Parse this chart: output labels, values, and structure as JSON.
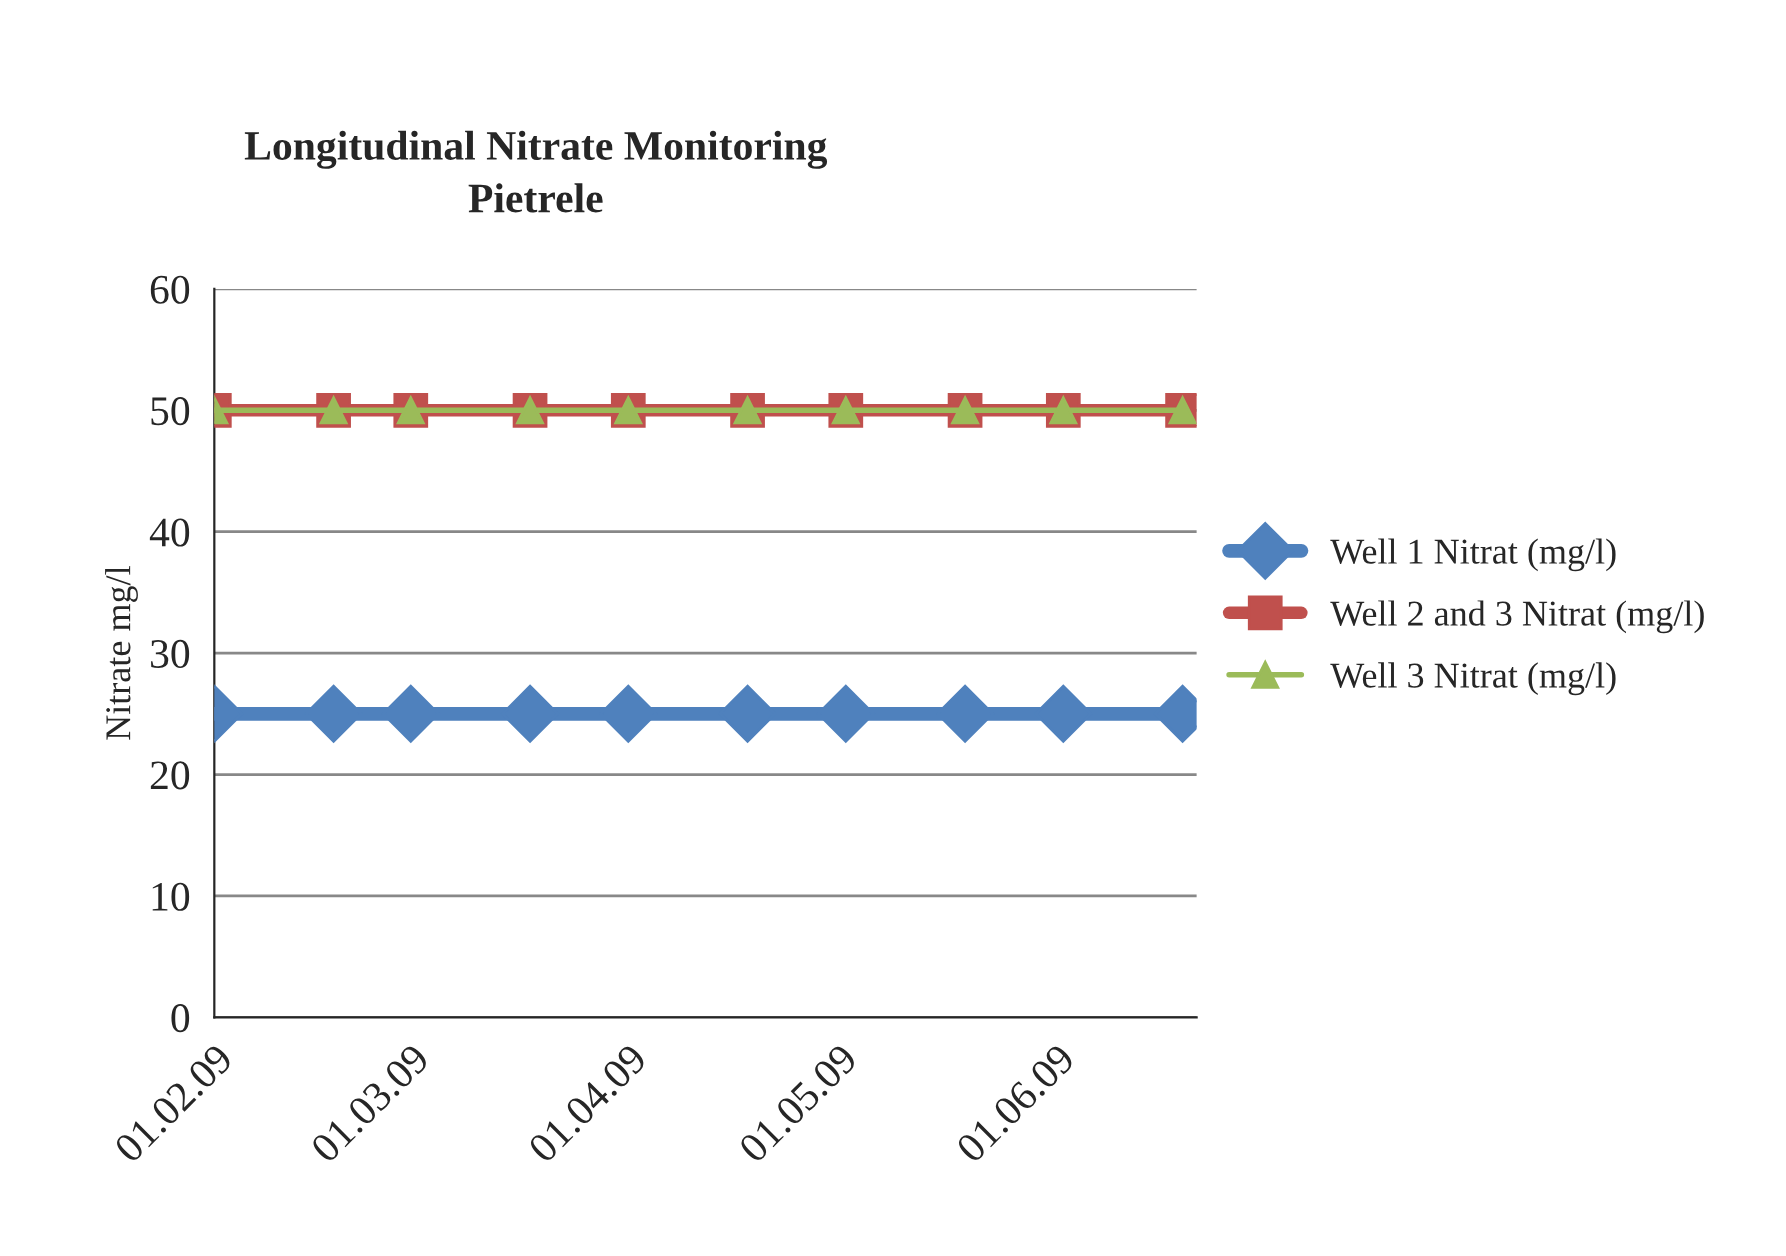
{
  "chart_data": {
    "type": "line",
    "title": "Longitudinal Nitrate Monitoring\nPietrele",
    "ylabel": "Nitrate mg/l",
    "x": [
      "2009-02-01",
      "2009-02-18",
      "2009-03-01",
      "2009-03-18",
      "2009-04-01",
      "2009-04-18",
      "2009-05-02",
      "2009-05-19",
      "2009-06-02",
      "2009-06-19"
    ],
    "series": [
      {
        "name": "Well 1 Nitrat (mg/l)",
        "color": "#4f81bd",
        "marker": "diamond",
        "values": [
          25,
          25,
          25,
          25,
          25,
          25,
          25,
          25,
          25,
          25
        ]
      },
      {
        "name": "Well 2 and 3 Nitrat (mg/l)",
        "color": "#c0504d",
        "marker": "square",
        "values": [
          50,
          50,
          50,
          50,
          50,
          50,
          50,
          50,
          50,
          50
        ]
      },
      {
        "name": "Well 3 Nitrat (mg/l)",
        "color": "#9bbb59",
        "marker": "triangle",
        "values": [
          50,
          50,
          50,
          50,
          50,
          50,
          50,
          50,
          50,
          50
        ]
      }
    ],
    "xlim": [
      "2009-02-01",
      "2009-06-21"
    ],
    "xticks": [
      {
        "value": "2009-02-01",
        "label": "01.02.09"
      },
      {
        "value": "2009-03-01",
        "label": "01.03.09"
      },
      {
        "value": "2009-04-01",
        "label": "01.04.09"
      },
      {
        "value": "2009-05-01",
        "label": "01.05.09"
      },
      {
        "value": "2009-06-01",
        "label": "01.06.09"
      }
    ],
    "ylim": [
      0,
      60
    ],
    "yticks": [
      0,
      10,
      20,
      30,
      40,
      50,
      60
    ],
    "grid": "y",
    "legend": "right",
    "line_style": "solid"
  }
}
